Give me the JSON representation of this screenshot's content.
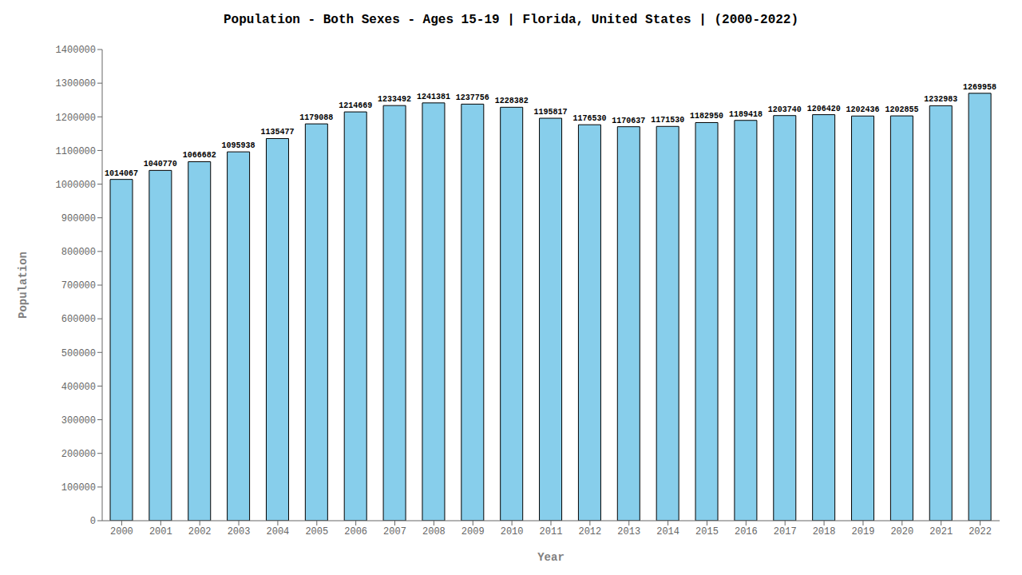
{
  "chart_data": {
    "type": "bar",
    "title": "Population - Both Sexes - Ages 15-19 | Florida, United States |  (2000-2022)",
    "xlabel": "Year",
    "ylabel": "Population",
    "categories": [
      "2000",
      "2001",
      "2002",
      "2003",
      "2004",
      "2005",
      "2006",
      "2007",
      "2008",
      "2009",
      "2010",
      "2011",
      "2012",
      "2013",
      "2014",
      "2015",
      "2016",
      "2017",
      "2018",
      "2019",
      "2020",
      "2021",
      "2022"
    ],
    "values": [
      1014067,
      1040770,
      1066682,
      1095938,
      1135477,
      1179088,
      1214669,
      1233492,
      1241381,
      1237756,
      1228382,
      1195817,
      1176530,
      1170637,
      1171530,
      1182950,
      1189418,
      1203740,
      1206420,
      1202436,
      1202855,
      1232983,
      1269958
    ],
    "color": "#87CEEB",
    "ylim": [
      0,
      1400000
    ],
    "yticks": [
      0,
      100000,
      200000,
      300000,
      400000,
      500000,
      600000,
      700000,
      800000,
      900000,
      1000000,
      1100000,
      1200000,
      1300000,
      1400000
    ],
    "grid": false,
    "data_labels": true
  }
}
